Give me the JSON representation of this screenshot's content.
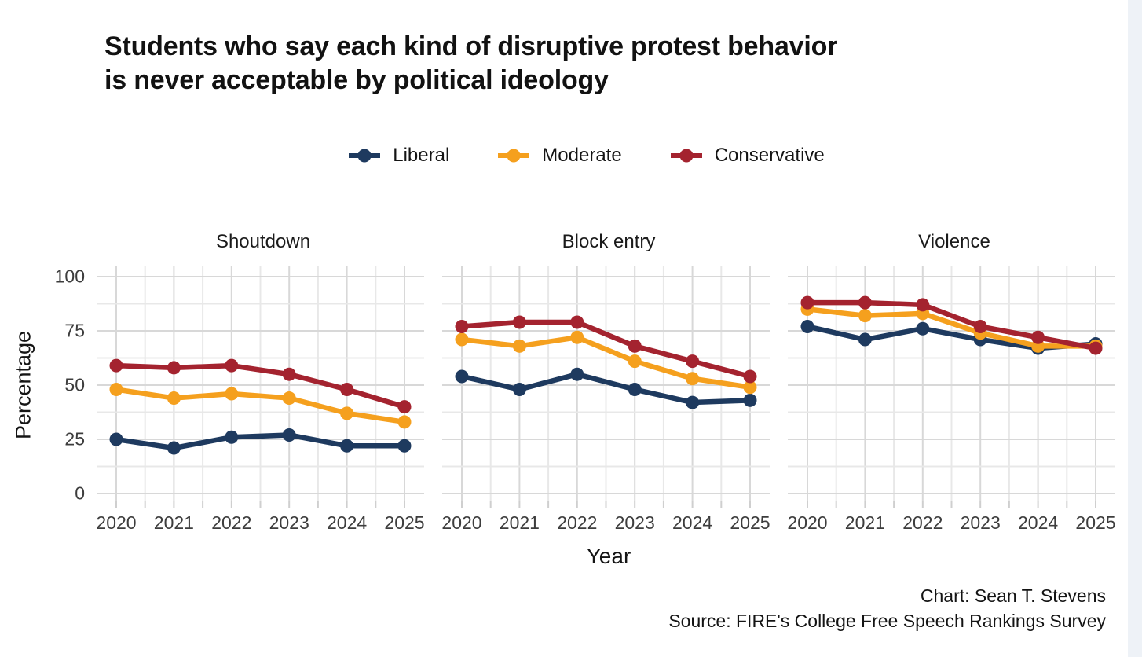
{
  "title": {
    "line1": "Students who say each kind of disruptive protest behavior",
    "line2": "is never acceptable by political ideology"
  },
  "credits": {
    "chart": "Chart: Sean T. Stevens",
    "source": "Source: FIRE's College Free Speech Rankings Survey"
  },
  "colors": {
    "liberal": "#1e3a5f",
    "moderate": "#f5a01e",
    "conservative": "#a4232f",
    "grid_major": "#d8d8d8",
    "grid_minor": "#e8e8e8",
    "tick": "#cfcfcf",
    "page_strip": "#eef2f7"
  },
  "chart_data": {
    "type": "line",
    "title": "Students who say each kind of disruptive protest behavior is never acceptable by political ideology",
    "xlabel": "Year",
    "ylabel": "Percentage",
    "x": [
      2020,
      2021,
      2022,
      2023,
      2024,
      2025
    ],
    "y_ticks": [
      0,
      25,
      50,
      75,
      100
    ],
    "ylim": [
      0,
      100
    ],
    "grid": true,
    "legend_position": "top",
    "legend": [
      {
        "name": "Liberal",
        "color": "#1e3a5f"
      },
      {
        "name": "Moderate",
        "color": "#f5a01e"
      },
      {
        "name": "Conservative",
        "color": "#a4232f"
      }
    ],
    "facets": [
      {
        "title": "Shoutdown",
        "series": [
          {
            "name": "Liberal",
            "color": "#1e3a5f",
            "values": [
              25,
              21,
              26,
              27,
              22,
              22
            ]
          },
          {
            "name": "Moderate",
            "color": "#f5a01e",
            "values": [
              48,
              44,
              46,
              44,
              37,
              33
            ]
          },
          {
            "name": "Conservative",
            "color": "#a4232f",
            "values": [
              59,
              58,
              59,
              55,
              48,
              40
            ]
          }
        ]
      },
      {
        "title": "Block entry",
        "series": [
          {
            "name": "Liberal",
            "color": "#1e3a5f",
            "values": [
              54,
              48,
              55,
              48,
              42,
              43
            ]
          },
          {
            "name": "Moderate",
            "color": "#f5a01e",
            "values": [
              71,
              68,
              72,
              61,
              53,
              49
            ]
          },
          {
            "name": "Conservative",
            "color": "#a4232f",
            "values": [
              77,
              79,
              79,
              68,
              61,
              54
            ]
          }
        ]
      },
      {
        "title": "Violence",
        "series": [
          {
            "name": "Liberal",
            "color": "#1e3a5f",
            "values": [
              77,
              71,
              76,
              71,
              67,
              69
            ]
          },
          {
            "name": "Moderate",
            "color": "#f5a01e",
            "values": [
              85,
              82,
              83,
              74,
              68,
              68
            ]
          },
          {
            "name": "Conservative",
            "color": "#a4232f",
            "values": [
              88,
              88,
              87,
              77,
              72,
              67
            ]
          }
        ]
      }
    ]
  }
}
